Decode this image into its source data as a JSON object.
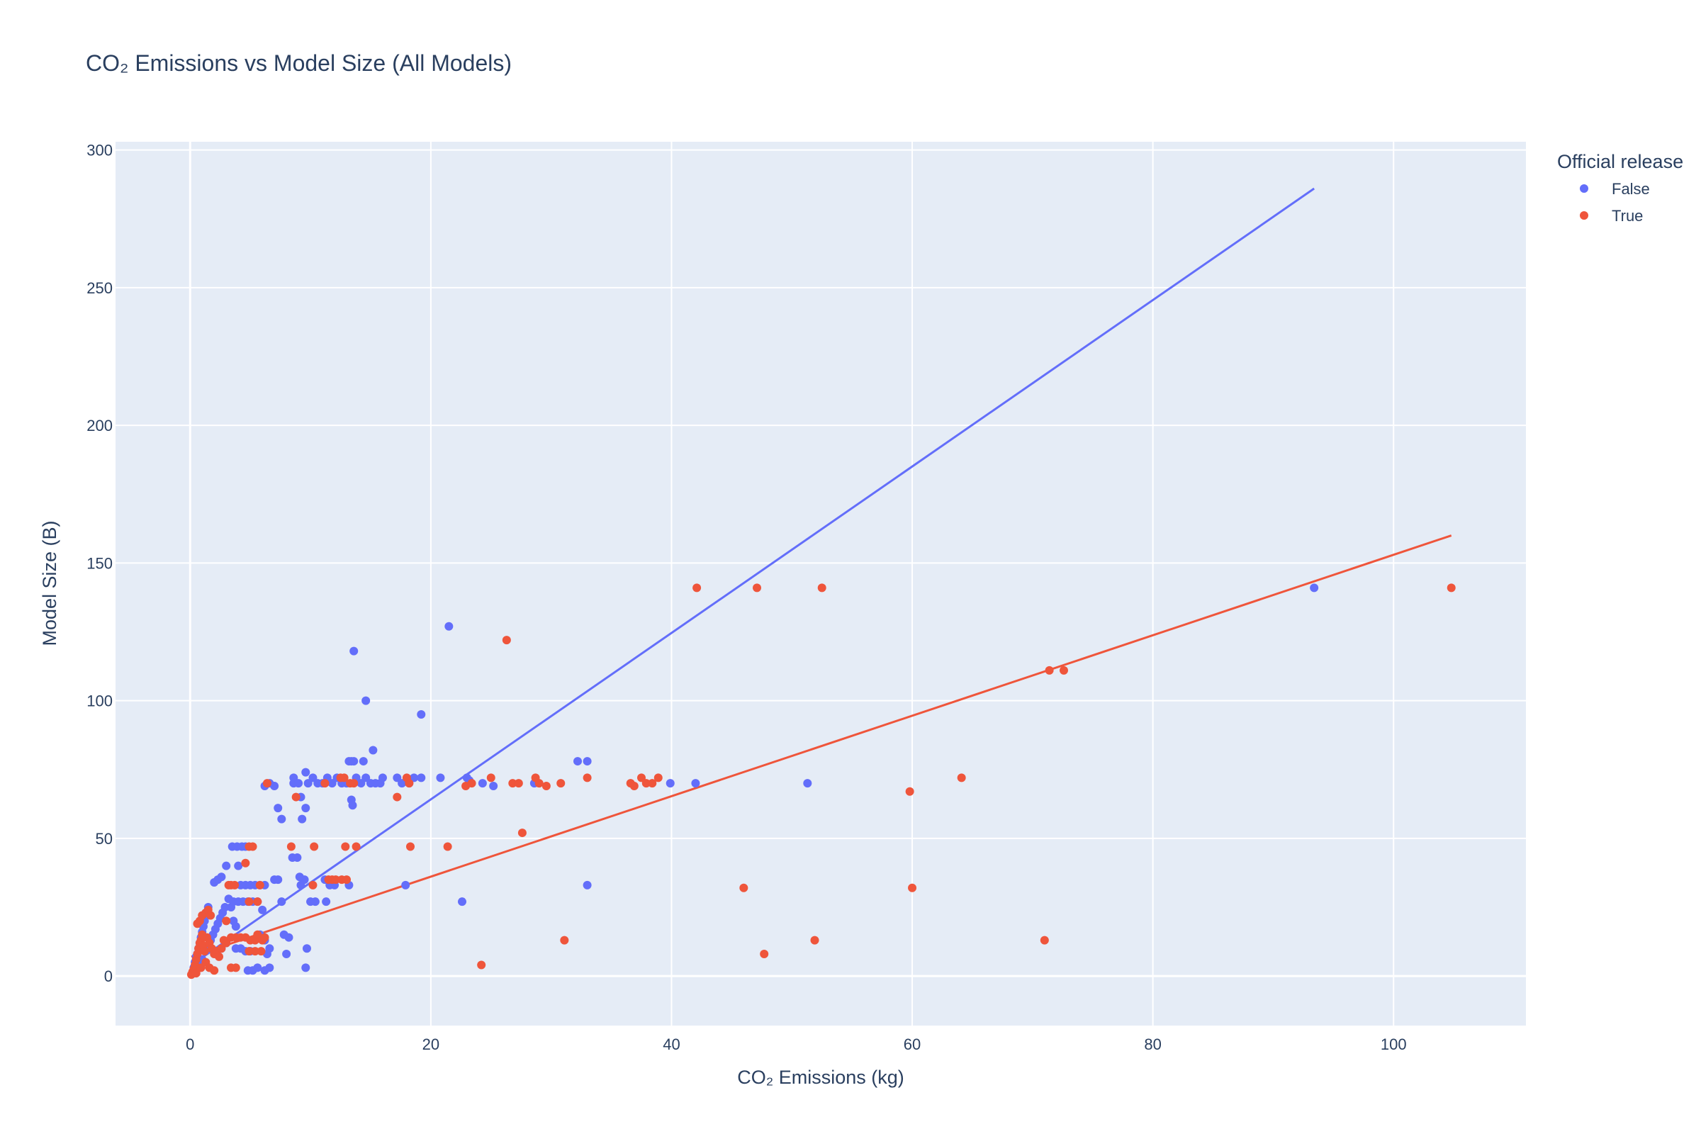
{
  "chart_data": {
    "type": "scatter",
    "title": "CO₂ Emissions vs Model Size (All Models)",
    "xlabel": "CO₂ Emissions (kg)",
    "ylabel": "Model Size (B)",
    "xlim": [
      -6.2,
      111
    ],
    "ylim": [
      -18,
      303
    ],
    "x_ticks": [
      0,
      20,
      40,
      60,
      80,
      100
    ],
    "y_ticks": [
      0,
      50,
      100,
      150,
      200,
      250,
      300
    ],
    "grid": true,
    "plot_background": "#E5ECF6",
    "legend": {
      "title": "Official release",
      "placement": "top-right"
    },
    "series": [
      {
        "name": "False",
        "color": "#636EFA",
        "points": [
          [
            0.2,
            1
          ],
          [
            0.3,
            3
          ],
          [
            0.4,
            5
          ],
          [
            0.5,
            7
          ],
          [
            0.6,
            8
          ],
          [
            0.7,
            10
          ],
          [
            0.8,
            12
          ],
          [
            0.9,
            14
          ],
          [
            1.0,
            16
          ],
          [
            1.1,
            18
          ],
          [
            1.2,
            20
          ],
          [
            1.3,
            22
          ],
          [
            0.5,
            2
          ],
          [
            0.8,
            4
          ],
          [
            1.0,
            6
          ],
          [
            1.3,
            9
          ],
          [
            1.5,
            11
          ],
          [
            1.7,
            13
          ],
          [
            1.9,
            15
          ],
          [
            2.1,
            17
          ],
          [
            2.3,
            19
          ],
          [
            2.5,
            21
          ],
          [
            2.7,
            23
          ],
          [
            2.9,
            25
          ],
          [
            1.5,
            25
          ],
          [
            2.0,
            34
          ],
          [
            2.3,
            35
          ],
          [
            2.6,
            36
          ],
          [
            3.0,
            40
          ],
          [
            3.2,
            28
          ],
          [
            3.4,
            25
          ],
          [
            3.6,
            20
          ],
          [
            3.8,
            18
          ],
          [
            2.2,
            8
          ],
          [
            2.6,
            10
          ],
          [
            3.0,
            12
          ],
          [
            3.5,
            47
          ],
          [
            3.9,
            47
          ],
          [
            4.3,
            47
          ],
          [
            4.6,
            47
          ],
          [
            4.0,
            40
          ],
          [
            4.2,
            33
          ],
          [
            4.6,
            33
          ],
          [
            5.0,
            33
          ],
          [
            5.4,
            33
          ],
          [
            5.8,
            33
          ],
          [
            6.2,
            33
          ],
          [
            3.6,
            27
          ],
          [
            4.0,
            27
          ],
          [
            4.4,
            27
          ],
          [
            4.8,
            27
          ],
          [
            5.2,
            27
          ],
          [
            5.6,
            27
          ],
          [
            6.0,
            24
          ],
          [
            3.8,
            10
          ],
          [
            4.2,
            10
          ],
          [
            4.6,
            9
          ],
          [
            5.0,
            9
          ],
          [
            4.8,
            2
          ],
          [
            5.2,
            2
          ],
          [
            5.6,
            3
          ],
          [
            6.2,
            2
          ],
          [
            6.6,
            3
          ],
          [
            6.4,
            8
          ],
          [
            6.6,
            10
          ],
          [
            6.2,
            13
          ],
          [
            5.8,
            15
          ],
          [
            6.2,
            69
          ],
          [
            6.6,
            70
          ],
          [
            7.0,
            69
          ],
          [
            7.3,
            61
          ],
          [
            7.6,
            57
          ],
          [
            7.6,
            27
          ],
          [
            7.8,
            15
          ],
          [
            8.2,
            14
          ],
          [
            8.0,
            8
          ],
          [
            7.0,
            35
          ],
          [
            7.3,
            35
          ],
          [
            8.6,
            72
          ],
          [
            8.6,
            70
          ],
          [
            9.0,
            70
          ],
          [
            9.2,
            65
          ],
          [
            9.3,
            57
          ],
          [
            8.5,
            43
          ],
          [
            8.9,
            43
          ],
          [
            9.1,
            36
          ],
          [
            9.5,
            35
          ],
          [
            9.2,
            33
          ],
          [
            9.6,
            74
          ],
          [
            9.8,
            70
          ],
          [
            10.2,
            72
          ],
          [
            10.6,
            70
          ],
          [
            11.0,
            70
          ],
          [
            11.4,
            72
          ],
          [
            9.6,
            61
          ],
          [
            9.7,
            10
          ],
          [
            9.6,
            3
          ],
          [
            10.0,
            27
          ],
          [
            10.4,
            27
          ],
          [
            11.2,
            35
          ],
          [
            11.6,
            33
          ],
          [
            12.0,
            33
          ],
          [
            11.3,
            27
          ],
          [
            11.8,
            70
          ],
          [
            12.2,
            72
          ],
          [
            12.6,
            70
          ],
          [
            13.0,
            70
          ],
          [
            13.2,
            78
          ],
          [
            13.4,
            78
          ],
          [
            13.6,
            78
          ],
          [
            13.8,
            72
          ],
          [
            14.2,
            70
          ],
          [
            14.6,
            72
          ],
          [
            13.4,
            64
          ],
          [
            13.5,
            62
          ],
          [
            13.6,
            118
          ],
          [
            14.6,
            100
          ],
          [
            15.2,
            82
          ],
          [
            15.0,
            70
          ],
          [
            15.4,
            70
          ],
          [
            15.8,
            70
          ],
          [
            16.0,
            72
          ],
          [
            14.4,
            78
          ],
          [
            13.2,
            33
          ],
          [
            17.2,
            72
          ],
          [
            17.6,
            70
          ],
          [
            18.2,
            70
          ],
          [
            18.6,
            72
          ],
          [
            19.2,
            72
          ],
          [
            19.2,
            95
          ],
          [
            21.5,
            127
          ],
          [
            20.8,
            72
          ],
          [
            23.0,
            72
          ],
          [
            23.2,
            71
          ],
          [
            24.3,
            70
          ],
          [
            25.2,
            69
          ],
          [
            28.6,
            70
          ],
          [
            32.2,
            78
          ],
          [
            33.0,
            78
          ],
          [
            39.9,
            70
          ],
          [
            42.0,
            70
          ],
          [
            51.3,
            70
          ],
          [
            22.6,
            27
          ],
          [
            17.9,
            33
          ],
          [
            33.0,
            33
          ],
          [
            93.4,
            141
          ]
        ]
      },
      {
        "name": "True",
        "color": "#EF553B",
        "points": [
          [
            0.1,
            0.5
          ],
          [
            0.2,
            1.5
          ],
          [
            0.3,
            2.5
          ],
          [
            0.4,
            4
          ],
          [
            0.5,
            6
          ],
          [
            0.6,
            8
          ],
          [
            0.7,
            10
          ],
          [
            0.8,
            12
          ],
          [
            0.9,
            13
          ],
          [
            1.0,
            15
          ],
          [
            1.1,
            11
          ],
          [
            1.2,
            9
          ],
          [
            0.6,
            19
          ],
          [
            0.8,
            20
          ],
          [
            1.0,
            22
          ],
          [
            1.3,
            23
          ],
          [
            1.5,
            24
          ],
          [
            1.7,
            22
          ],
          [
            1.4,
            14
          ],
          [
            1.6,
            12
          ],
          [
            1.8,
            10
          ],
          [
            2.0,
            8
          ],
          [
            2.2,
            9
          ],
          [
            2.4,
            7
          ],
          [
            0.5,
            1
          ],
          [
            0.9,
            3
          ],
          [
            1.3,
            5
          ],
          [
            1.6,
            3
          ],
          [
            2.0,
            2
          ],
          [
            2.6,
            10
          ],
          [
            2.8,
            13
          ],
          [
            3.0,
            20
          ],
          [
            3.2,
            33
          ],
          [
            3.4,
            33
          ],
          [
            3.7,
            33
          ],
          [
            3.0,
            12
          ],
          [
            3.4,
            14
          ],
          [
            3.8,
            14
          ],
          [
            4.2,
            14
          ],
          [
            4.6,
            14
          ],
          [
            5.0,
            13
          ],
          [
            5.4,
            13
          ],
          [
            5.6,
            15
          ],
          [
            6.0,
            13
          ],
          [
            6.2,
            14
          ],
          [
            3.4,
            3
          ],
          [
            3.8,
            3
          ],
          [
            4.6,
            41
          ],
          [
            4.9,
            47
          ],
          [
            5.2,
            47
          ],
          [
            4.9,
            27
          ],
          [
            5.6,
            27
          ],
          [
            5.8,
            33
          ],
          [
            4.9,
            9
          ],
          [
            5.4,
            9
          ],
          [
            5.9,
            9
          ],
          [
            6.4,
            70
          ],
          [
            8.4,
            47
          ],
          [
            8.8,
            65
          ],
          [
            10.3,
            47
          ],
          [
            10.2,
            33
          ],
          [
            11.2,
            70
          ],
          [
            11.5,
            35
          ],
          [
            11.8,
            35
          ],
          [
            12.1,
            35
          ],
          [
            12.5,
            72
          ],
          [
            12.8,
            72
          ],
          [
            12.6,
            35
          ],
          [
            13.0,
            35
          ],
          [
            13.3,
            70
          ],
          [
            13.6,
            70
          ],
          [
            13.8,
            47
          ],
          [
            12.9,
            47
          ],
          [
            17.2,
            65
          ],
          [
            18.0,
            72
          ],
          [
            18.3,
            47
          ],
          [
            18.2,
            70
          ],
          [
            21.4,
            47
          ],
          [
            22.9,
            69
          ],
          [
            23.4,
            70
          ],
          [
            24.2,
            4
          ],
          [
            25.0,
            72
          ],
          [
            26.3,
            122
          ],
          [
            26.8,
            70
          ],
          [
            27.3,
            70
          ],
          [
            27.6,
            52
          ],
          [
            28.7,
            72
          ],
          [
            29.0,
            70
          ],
          [
            29.6,
            69
          ],
          [
            30.8,
            70
          ],
          [
            31.1,
            13
          ],
          [
            33.0,
            72
          ],
          [
            36.6,
            70
          ],
          [
            36.9,
            69
          ],
          [
            37.5,
            72
          ],
          [
            37.9,
            70
          ],
          [
            38.4,
            70
          ],
          [
            38.9,
            72
          ],
          [
            42.1,
            141
          ],
          [
            46.0,
            32
          ],
          [
            47.1,
            141
          ],
          [
            47.7,
            8
          ],
          [
            51.9,
            13
          ],
          [
            52.5,
            141
          ],
          [
            59.8,
            67
          ],
          [
            60.0,
            32
          ],
          [
            64.1,
            72
          ],
          [
            71.0,
            13
          ],
          [
            71.4,
            111
          ],
          [
            72.6,
            111
          ],
          [
            104.8,
            141
          ]
        ]
      }
    ],
    "trendlines": [
      {
        "series": "False",
        "color": "#636EFA",
        "x": [
          0.1,
          93.4
        ],
        "y": [
          4,
          286
        ]
      },
      {
        "series": "True",
        "color": "#EF553B",
        "x": [
          0.1,
          104.8
        ],
        "y": [
          7,
          160
        ]
      }
    ]
  }
}
